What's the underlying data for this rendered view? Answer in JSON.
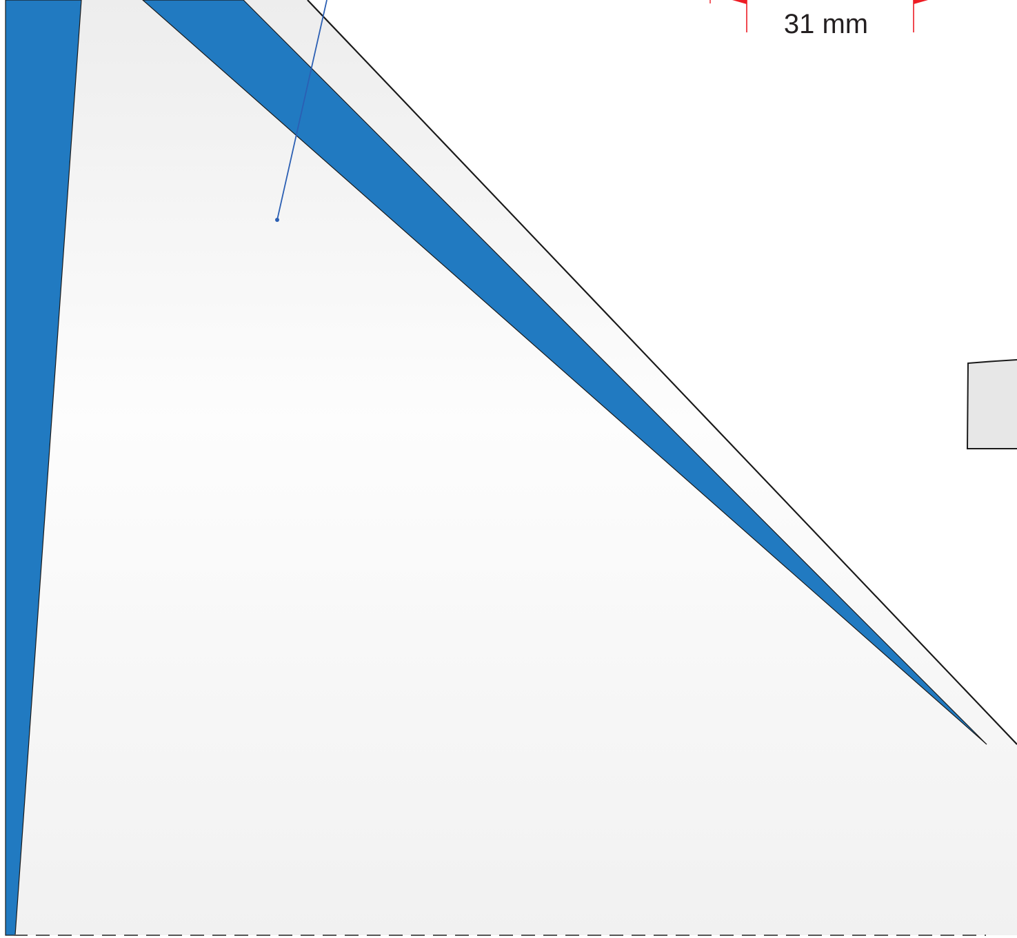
{
  "dimension": {
    "label": "31 mm",
    "color": "#ed1c24"
  },
  "colors": {
    "blue_panel": "#217ac1",
    "panel_fill_light": "#f3f3f3",
    "outline": "#1a1a1a",
    "leader_line": "#2b5fb3",
    "tab_fill": "#e7e7e7",
    "fold_line": "#555555"
  }
}
